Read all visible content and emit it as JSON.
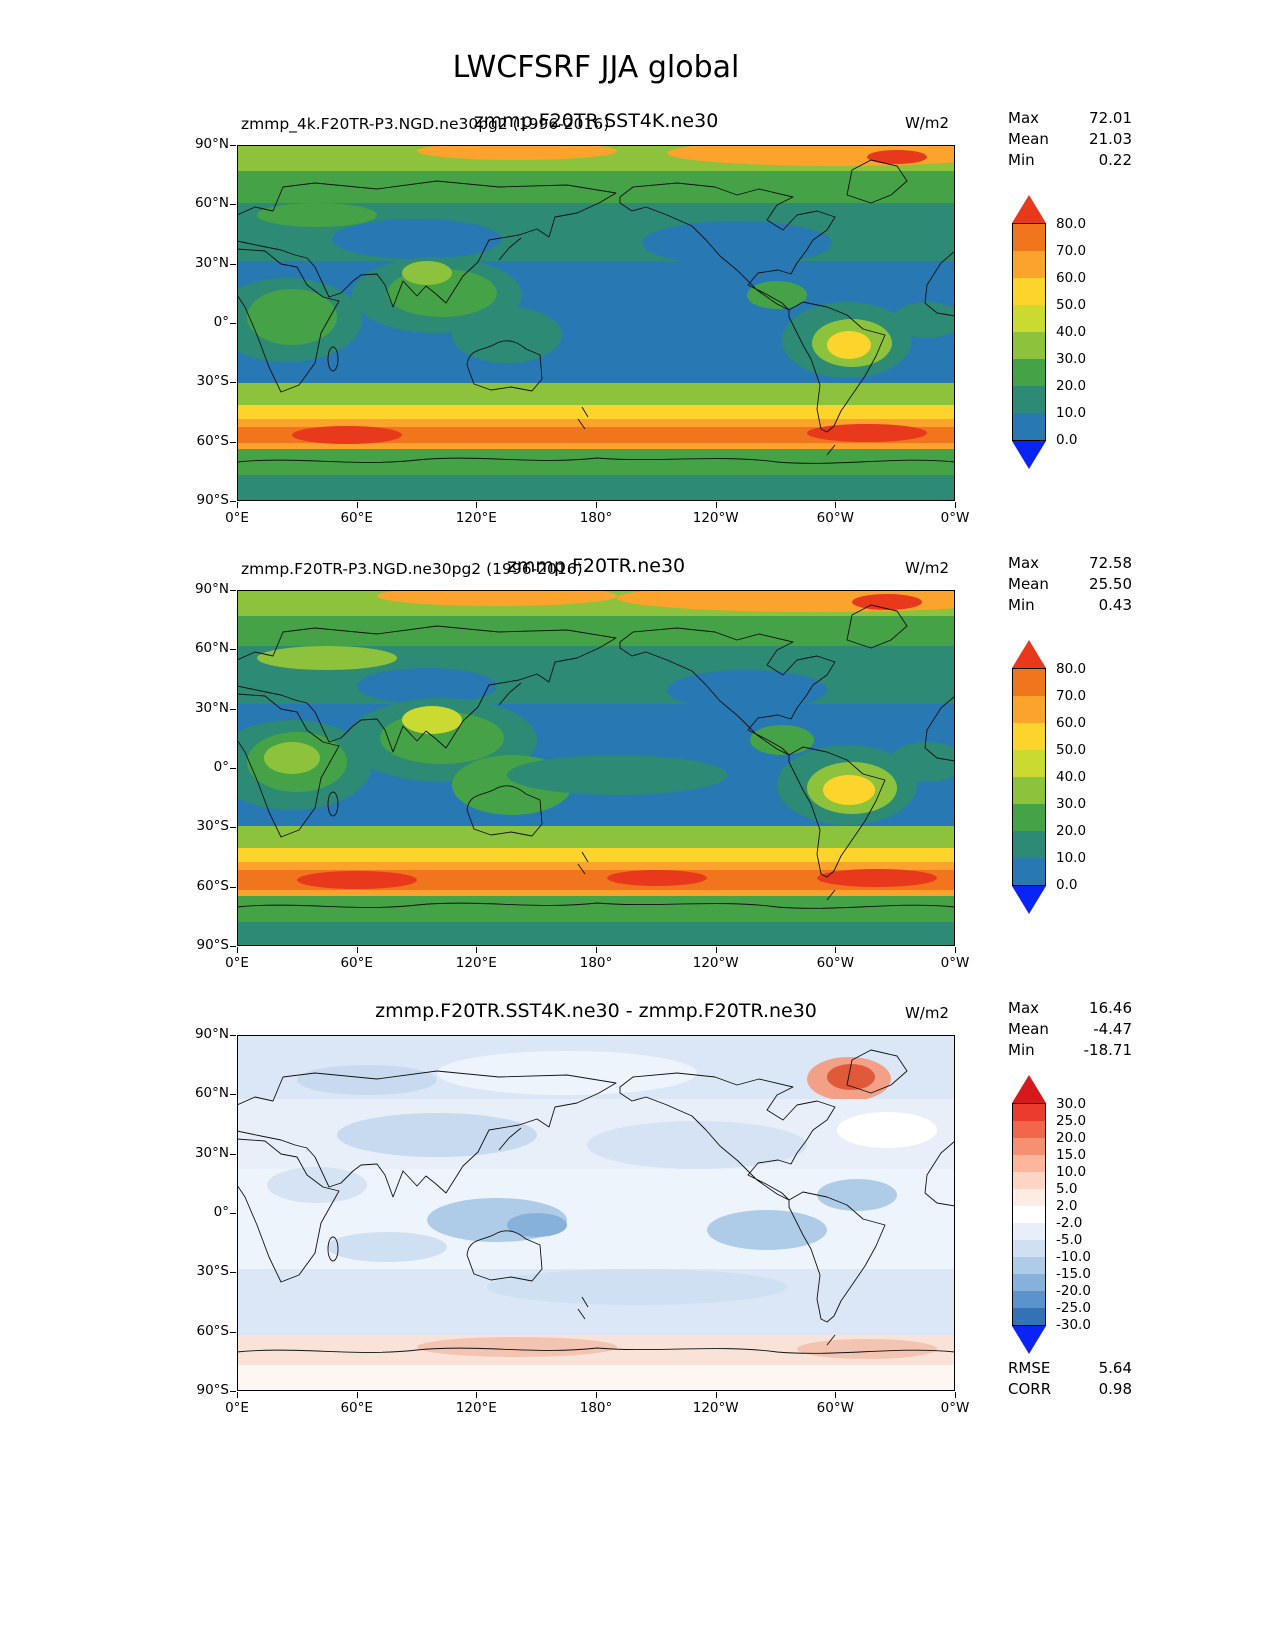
{
  "figure": {
    "title": "LWCFSRF JJA global"
  },
  "axes": {
    "x_ticks": [
      "0°E",
      "60°E",
      "120°E",
      "180°",
      "120°W",
      "60°W",
      "0°W"
    ],
    "y_ticks": [
      "90°N",
      "60°N",
      "30°N",
      "0°",
      "30°S",
      "60°S",
      "90°S"
    ]
  },
  "panels": [
    {
      "title_left": "zmmp_4k.F20TR-P3.NGD.ne30pg2 (1996-2016)",
      "title_center": "zmmp.F20TR.SST4K.ne30",
      "units": "W/m2",
      "stats": [
        {
          "label": "Max",
          "value": "72.01"
        },
        {
          "label": "Mean",
          "value": "21.03"
        },
        {
          "label": "Min",
          "value": "0.22"
        }
      ],
      "colorbar": {
        "tick_labels": [
          "80.0",
          "70.0",
          "60.0",
          "50.0",
          "40.0",
          "30.0",
          "20.0",
          "10.0",
          "0.0"
        ],
        "band_colors": [
          "#f1751c",
          "#fba32c",
          "#fdd42c",
          "#cada31",
          "#8dc33c",
          "#45a247",
          "#2d8a74",
          "#2878b4"
        ],
        "arrow_top": "#e8391c",
        "arrow_bottom": "#0a24f5"
      }
    },
    {
      "title_left": "zmmp.F20TR-P3.NGD.ne30pg2 (1996-2016)",
      "title_center": "zmmp.F20TR.ne30",
      "units": "W/m2",
      "stats": [
        {
          "label": "Max",
          "value": "72.58"
        },
        {
          "label": "Mean",
          "value": "25.50"
        },
        {
          "label": "Min",
          "value": "0.43"
        }
      ],
      "colorbar": {
        "tick_labels": [
          "80.0",
          "70.0",
          "60.0",
          "50.0",
          "40.0",
          "30.0",
          "20.0",
          "10.0",
          "0.0"
        ],
        "band_colors": [
          "#f1751c",
          "#fba32c",
          "#fdd42c",
          "#cada31",
          "#8dc33c",
          "#45a247",
          "#2d8a74",
          "#2878b4"
        ],
        "arrow_top": "#e8391c",
        "arrow_bottom": "#0a24f5"
      }
    },
    {
      "title_left": "",
      "title_center": "zmmp.F20TR.SST4K.ne30 - zmmp.F20TR.ne30",
      "units": "W/m2",
      "stats": [
        {
          "label": "Max",
          "value": "16.46"
        },
        {
          "label": "Mean",
          "value": "-4.47"
        },
        {
          "label": "Min",
          "value": "-18.71"
        }
      ],
      "extra_stats": [
        {
          "label": "RMSE",
          "value": "5.64"
        },
        {
          "label": "CORR",
          "value": "0.98"
        }
      ],
      "colorbar": {
        "tick_labels": [
          "30.0",
          "25.0",
          "20.0",
          "15.0",
          "10.0",
          "5.0",
          "2.0",
          "-2.0",
          "-5.0",
          "-10.0",
          "-15.0",
          "-20.0",
          "-25.0",
          "-30.0"
        ],
        "band_colors": [
          "#ea3b2e",
          "#f2664c",
          "#f78f71",
          "#fbb69c",
          "#fdd5c4",
          "#feece4",
          "#ffffff",
          "#e8eff9",
          "#cfe0f2",
          "#aecce8",
          "#86b1db",
          "#5b94cc",
          "#3372b5"
        ],
        "arrow_top": "#d6191c",
        "arrow_bottom": "#0a24f5"
      }
    }
  ],
  "chart_data": [
    {
      "type": "heatmap",
      "title": "zmmp_4k.F20TR-P3.NGD.ne30pg2 (1996-2016) — zmmp.F20TR.SST4K.ne30",
      "variable": "LWCFSRF",
      "season": "JJA",
      "region": "global",
      "units": "W/m2",
      "projection": "lat-lon, 0°E to 0°W, 90°N to 90°S",
      "contour_levels": [
        0,
        10,
        20,
        30,
        40,
        50,
        60,
        70,
        80
      ],
      "stats": {
        "max": 72.01,
        "mean": 21.03,
        "min": 0.22
      },
      "legend_position": "right",
      "colorbar_extend": "both"
    },
    {
      "type": "heatmap",
      "title": "zmmp.F20TR-P3.NGD.ne30pg2 (1996-2016) — zmmp.F20TR.ne30",
      "variable": "LWCFSRF",
      "season": "JJA",
      "region": "global",
      "units": "W/m2",
      "projection": "lat-lon, 0°E to 0°W, 90°N to 90°S",
      "contour_levels": [
        0,
        10,
        20,
        30,
        40,
        50,
        60,
        70,
        80
      ],
      "stats": {
        "max": 72.58,
        "mean": 25.5,
        "min": 0.43
      },
      "legend_position": "right",
      "colorbar_extend": "both"
    },
    {
      "type": "heatmap",
      "title": "zmmp.F20TR.SST4K.ne30 - zmmp.F20TR.ne30",
      "variable": "LWCFSRF difference",
      "season": "JJA",
      "region": "global",
      "units": "W/m2",
      "projection": "lat-lon, 0°E to 0°W, 90°N to 90°S",
      "contour_levels": [
        -30,
        -25,
        -20,
        -15,
        -10,
        -5,
        -2,
        2,
        5,
        10,
        15,
        20,
        25,
        30
      ],
      "stats": {
        "max": 16.46,
        "mean": -4.47,
        "min": -18.71,
        "rmse": 5.64,
        "corr": 0.98
      },
      "legend_position": "right",
      "colorbar_extend": "both"
    }
  ]
}
